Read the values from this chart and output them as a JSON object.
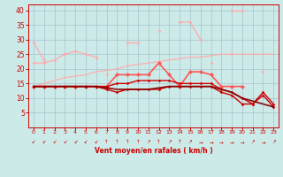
{
  "x": [
    0,
    1,
    2,
    3,
    4,
    5,
    6,
    7,
    8,
    9,
    10,
    11,
    12,
    13,
    14,
    15,
    16,
    17,
    18,
    19,
    20,
    21,
    22,
    23
  ],
  "pale1": [
    29,
    23,
    null,
    25,
    null,
    null,
    null,
    18,
    null,
    29,
    29,
    null,
    null,
    null,
    null,
    null,
    null,
    null,
    null,
    null,
    null,
    null,
    null,
    null
  ],
  "pale2": [
    22,
    22,
    23,
    25,
    26,
    25,
    24,
    null,
    null,
    null,
    null,
    null,
    null,
    null,
    null,
    null,
    null,
    22,
    null,
    25,
    null,
    null,
    19,
    null
  ],
  "pale3": [
    null,
    null,
    null,
    null,
    null,
    null,
    null,
    null,
    null,
    null,
    null,
    null,
    33,
    null,
    36,
    36,
    30,
    null,
    null,
    40,
    40,
    null,
    null,
    null
  ],
  "pale_smooth": [
    14,
    15,
    16,
    17,
    17.5,
    18,
    19,
    19.5,
    20,
    21,
    21.5,
    22,
    22.5,
    23,
    23.5,
    24,
    24,
    24.5,
    25,
    25,
    25,
    25,
    25,
    25
  ],
  "med1": [
    14,
    14,
    14,
    14,
    14,
    14,
    14,
    14,
    18,
    18,
    18,
    18,
    22,
    18,
    14,
    19,
    19,
    18,
    14,
    14,
    14,
    null,
    null,
    null
  ],
  "dark1": [
    14,
    14,
    14,
    14,
    14,
    14,
    14,
    13,
    12,
    13,
    13,
    13,
    13,
    14,
    14,
    14,
    14,
    14,
    12,
    11,
    8,
    8,
    12,
    8
  ],
  "dark2": [
    14,
    14,
    14,
    14,
    14,
    14,
    14,
    14,
    15,
    15,
    16,
    16,
    16,
    16,
    15,
    15,
    15,
    15,
    13,
    12,
    10,
    8,
    11,
    7
  ],
  "dark_smooth": [
    14,
    14,
    14,
    14,
    14,
    14,
    14,
    13.5,
    13,
    13,
    13,
    13,
    13.5,
    14,
    14,
    14,
    14,
    14,
    13,
    12,
    10,
    9,
    8,
    7
  ],
  "bg_color": "#cceae8",
  "grid_color": "#a0b8c8",
  "pale_color": "#ffaaaa",
  "med_color": "#ff5555",
  "dark_color": "#cc0000",
  "dark_smooth_color": "#880000",
  "text_color": "#cc0000",
  "xlabel": "Vent moyen/en rafales ( km/h )",
  "ylim": [
    0,
    42
  ],
  "yticks": [
    5,
    10,
    15,
    20,
    25,
    30,
    35,
    40
  ],
  "xticks": [
    0,
    1,
    2,
    3,
    4,
    5,
    6,
    7,
    8,
    9,
    10,
    11,
    12,
    13,
    14,
    15,
    16,
    17,
    18,
    19,
    20,
    21,
    22,
    23
  ],
  "arrows": [
    "↙",
    "↙",
    "↙",
    "↙",
    "↙",
    "↙",
    "↙",
    "↑",
    "↑",
    "↑",
    "↑",
    "↗",
    "↑",
    "↗",
    "↑",
    "↗",
    "→",
    "→",
    "→",
    "→",
    "→",
    "↗",
    "→",
    "↗"
  ]
}
